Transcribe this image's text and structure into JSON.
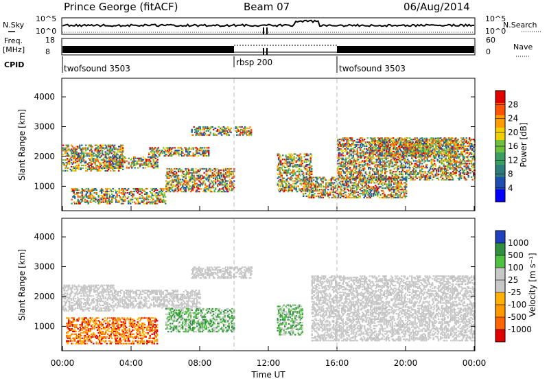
{
  "header": {
    "site": "Prince George (fitACF)",
    "beam": "Beam 07",
    "date": "06/Aug/2014"
  },
  "top_panels": {
    "nsky_label": "N.Sky",
    "nsearch_label": "N.Search",
    "noise_ticks": [
      "10^5",
      "10^0"
    ],
    "freq_label": "Freq.",
    "freq_unit": "[MHz]",
    "freq_ticks": [
      "18",
      "8"
    ],
    "nave_ticks": [
      "60",
      "0"
    ],
    "nave_label": "Nave",
    "cpid_label": "CPID"
  },
  "cpid_segments": [
    {
      "name": "twofsound 3503",
      "start_hour": 0
    },
    {
      "name": "rbsp 200",
      "start_hour": 10
    },
    {
      "name": "twofsound 3503",
      "start_hour": 16
    }
  ],
  "chart_data": [
    {
      "type": "heatmap",
      "title": "",
      "ylabel": "Slant Range [km]",
      "xlabel": "",
      "ylim": [
        180,
        4600
      ],
      "xlim_hours": [
        0,
        24
      ],
      "yticks": [
        "4000",
        "3000",
        "2000",
        "1000"
      ],
      "colorbar": {
        "label": "Power [dB]",
        "range": [
          0,
          30
        ],
        "ticks": [
          "28",
          "24",
          "20",
          "16",
          "12",
          "8",
          "4"
        ],
        "colors": [
          "#0000ff",
          "#1e4fb0",
          "#2e7d7d",
          "#3aa062",
          "#70c040",
          "#f0d000",
          "#ff9a00",
          "#ff5500",
          "#e00000"
        ]
      },
      "echo_regions_km": [
        {
          "t0": 0.0,
          "t1": 3.5,
          "r0": 1500,
          "r1": 2400
        },
        {
          "t0": 2.5,
          "t1": 5.5,
          "r0": 1600,
          "r1": 2000
        },
        {
          "t0": 5.0,
          "t1": 8.5,
          "r0": 2000,
          "r1": 2300
        },
        {
          "t0": 7.5,
          "t1": 9.8,
          "r0": 2700,
          "r1": 3000
        },
        {
          "t0": 10.0,
          "t1": 11.0,
          "r0": 2700,
          "r1": 3000
        },
        {
          "t0": 0.5,
          "t1": 6.0,
          "r0": 400,
          "r1": 900
        },
        {
          "t0": 6.0,
          "t1": 10.0,
          "r0": 800,
          "r1": 1600
        },
        {
          "t0": 12.5,
          "t1": 14.5,
          "r0": 800,
          "r1": 2100
        },
        {
          "t0": 14.0,
          "t1": 20.0,
          "r0": 600,
          "r1": 1300
        },
        {
          "t0": 16.0,
          "t1": 24.0,
          "r0": 1200,
          "r1": 2600
        },
        {
          "t0": 18.0,
          "t1": 23.0,
          "r0": 2000,
          "r1": 2600
        }
      ]
    },
    {
      "type": "heatmap",
      "title": "",
      "ylabel": "Slant Range [km]",
      "xlabel": "Time UT",
      "ylim": [
        180,
        4600
      ],
      "xlim_hours": [
        0,
        24
      ],
      "yticks": [
        "4000",
        "3000",
        "2000",
        "1000"
      ],
      "xticks": [
        "00:00",
        "04:00",
        "08:00",
        "12:00",
        "16:00",
        "20:00",
        "00:00"
      ],
      "colorbar": {
        "label": "Velocity [m s⁻¹]",
        "range": [
          -1200,
          1200
        ],
        "ticks": [
          "1000",
          "500",
          "100",
          "25",
          "-25",
          "-100",
          "-500",
          "-1000"
        ],
        "colors": [
          "#e00000",
          "#ff6600",
          "#ff9900",
          "#ffb000",
          "#c8c8c8",
          "#c8c8c8",
          "#50c040",
          "#2e9040",
          "#2040c0"
        ]
      },
      "echo_regions_km": [
        {
          "t0": 0.0,
          "t1": 3.0,
          "r0": 1500,
          "r1": 2400,
          "v": 0
        },
        {
          "t0": 3.0,
          "t1": 8.0,
          "r0": 1600,
          "r1": 2200,
          "v": 0
        },
        {
          "t0": 0.2,
          "t1": 5.5,
          "r0": 400,
          "r1": 1300,
          "v": -300
        },
        {
          "t0": 6.0,
          "t1": 10.0,
          "r0": 800,
          "r1": 1600,
          "v": 150
        },
        {
          "t0": 7.5,
          "t1": 11.0,
          "r0": 2600,
          "r1": 3000,
          "v": 0
        },
        {
          "t0": 12.5,
          "t1": 14.0,
          "r0": 700,
          "r1": 1700,
          "v": 200
        },
        {
          "t0": 14.5,
          "t1": 24.0,
          "r0": 500,
          "r1": 2700,
          "v": 0
        }
      ]
    }
  ]
}
